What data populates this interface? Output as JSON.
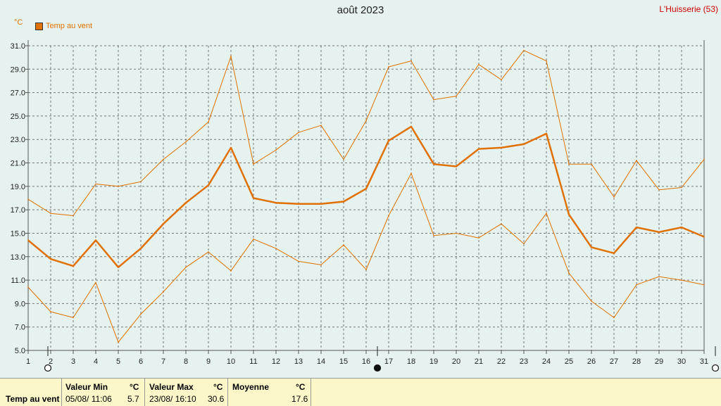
{
  "header": {
    "title": "août 2023",
    "station": "L'Huisserie (53)",
    "unit": "°C",
    "legend_label": "Temp au vent"
  },
  "chart_data": {
    "type": "line",
    "title": "août 2023",
    "ylabel": "°C",
    "xlabel": "",
    "x": [
      1,
      2,
      3,
      4,
      5,
      6,
      7,
      8,
      9,
      10,
      11,
      12,
      13,
      14,
      15,
      16,
      17,
      18,
      19,
      20,
      21,
      22,
      23,
      24,
      25,
      26,
      27,
      28,
      29,
      30,
      31
    ],
    "ylim": [
      5.0,
      31.0
    ],
    "yticks": [
      "5.0",
      "7.0",
      "9.0",
      "11.0",
      "13.0",
      "15.0",
      "17.0",
      "19.0",
      "21.0",
      "23.0",
      "25.0",
      "27.0",
      "29.0",
      "31.0"
    ],
    "grid": true,
    "legend": "top-left",
    "moon_markers": [
      {
        "day": 1,
        "phase": "full"
      },
      {
        "day": 16,
        "phase": "new"
      },
      {
        "day": 31,
        "phase": "full"
      }
    ],
    "series": [
      {
        "name": "Temp au vent",
        "role": "mean",
        "color": "#e07000",
        "values": [
          14.4,
          12.8,
          12.2,
          14.4,
          12.1,
          13.7,
          15.8,
          17.6,
          19.1,
          22.3,
          18.0,
          17.6,
          17.5,
          17.5,
          17.7,
          18.8,
          22.9,
          24.1,
          20.9,
          20.7,
          22.2,
          22.3,
          22.6,
          23.5,
          16.6,
          13.8,
          13.3,
          15.5,
          15.1,
          15.5,
          14.7
        ]
      },
      {
        "role": "max",
        "color": "#e07000",
        "values": [
          17.9,
          16.7,
          16.5,
          19.2,
          19.0,
          19.4,
          21.3,
          22.8,
          24.5,
          30.1,
          20.9,
          22.1,
          23.6,
          24.2,
          21.3,
          24.6,
          29.2,
          29.7,
          26.4,
          26.7,
          29.4,
          28.1,
          30.6,
          29.7,
          20.9,
          20.9,
          18.1,
          21.2,
          18.7,
          18.9,
          21.3
        ]
      },
      {
        "role": "min",
        "color": "#e07000",
        "values": [
          10.4,
          8.3,
          7.8,
          10.8,
          5.7,
          8.1,
          10.0,
          12.1,
          13.4,
          11.8,
          14.5,
          13.7,
          12.6,
          12.3,
          14.0,
          11.9,
          16.5,
          20.1,
          14.8,
          15.0,
          14.6,
          15.8,
          14.1,
          16.7,
          11.6,
          9.2,
          7.8,
          10.6,
          11.3,
          11.0,
          10.6
        ]
      }
    ]
  },
  "stats": {
    "row_label": "Temp au vent",
    "min_header": "Valeur Min",
    "max_header": "Valeur Max",
    "mean_header": "Moyenne",
    "unit": "°C",
    "min_date": "05/08/  11:06",
    "min_value": "5.7",
    "max_date": "23/08/  16:10",
    "max_value": "30.6",
    "mean_value": "17.6"
  }
}
